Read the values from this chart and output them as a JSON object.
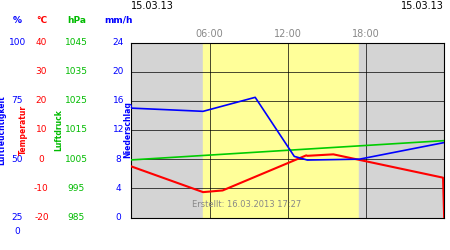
{
  "title_left": "15.03.13",
  "title_right": "15.03.13",
  "created_text": "Erstellt: 16.03.2013 17:27",
  "x_ticks_labels": [
    "06:00",
    "12:00",
    "18:00"
  ],
  "x_ticks_hours": [
    6,
    12,
    18
  ],
  "plot_bg_gray": "#d4d4d4",
  "plot_bg_yellow": "#ffff99",
  "yellow_start_h": 5.5,
  "yellow_end_h": 17.5,
  "line_blue_color": "#0000ff",
  "line_green_color": "#00cc00",
  "line_red_color": "#ff0000",
  "col1_header": "%",
  "col1_color": "#0000ff",
  "col1_vals": [
    "100",
    "",
    "75",
    "",
    "50",
    "",
    "25",
    "",
    "0"
  ],
  "col1_yvals": [
    100,
    87.5,
    75,
    62.5,
    50,
    37.5,
    25,
    12.5,
    0
  ],
  "col2_header": "°C",
  "col2_color": "#ff0000",
  "col2_vals": [
    "40",
    "30",
    "20",
    "10",
    "0",
    "-10",
    "-20"
  ],
  "col2_yvals": [
    40,
    30,
    20,
    10,
    0,
    -10,
    -20
  ],
  "col3_header": "hPa",
  "col3_color": "#00bb00",
  "col3_vals": [
    "1045",
    "1035",
    "1025",
    "1015",
    "1005",
    "995",
    "985"
  ],
  "col3_yvals": [
    1045,
    1035,
    1025,
    1015,
    1005,
    995,
    985
  ],
  "col4_header": "mm/h",
  "col4_color": "#0000ff",
  "col4_vals": [
    "24",
    "20",
    "16",
    "12",
    "8",
    "4",
    "0"
  ],
  "col4_yvals": [
    24,
    20,
    16,
    12,
    8,
    4,
    0
  ],
  "label_Luftfeuchtigkeit": "Luftfeuchtigkeit",
  "label_Temperatur": "Temperatur",
  "label_Luftdruck": "Luftdruck",
  "label_Niederschlag": "Niederschlag",
  "grid_color": "#000000",
  "xlim": [
    0,
    24
  ],
  "ylim_mm": [
    0,
    24
  ],
  "y_gridlines_mm": [
    0,
    4,
    8,
    12,
    16,
    20,
    24
  ],
  "x_gridlines_h": [
    0,
    6,
    12,
    18,
    24
  ]
}
